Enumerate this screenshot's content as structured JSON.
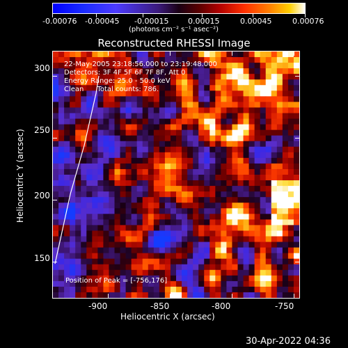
{
  "colorbar": {
    "tick_labels": [
      "-0.00076",
      "-0.00045",
      "-0.00015",
      "0.00015",
      "0.00045",
      "0.00076"
    ],
    "unit_label": "(photons cm⁻² s⁻¹ asec⁻²)",
    "vmin": -0.00076,
    "vmax": 0.00076
  },
  "plot": {
    "title": "Reconstructed RHESSI Image",
    "xlabel": "Heliocentric X (arcsec)",
    "ylabel": "Heliocentric Y (arcsec)",
    "x_ticks": [
      "-900",
      "-850",
      "-800",
      "-750"
    ],
    "y_ticks": [
      "150",
      "200",
      "250",
      "300"
    ],
    "xlim": [
      -945,
      -745
    ],
    "ylim": [
      120,
      320
    ],
    "annotations": {
      "time": "22-May-2005 23:18:56.000 to 23:19:48.000",
      "detectors": "Detectors: 3F 4F 5F 6F 7F 8F, Att 0",
      "energy": "Energy Range: 25.0 - 50.0 keV",
      "clean": "Clean      Total counts: 786.",
      "peak": "Position of Peak = [-756,176]"
    }
  },
  "footer": {
    "timestamp": "30-Apr-2022 04:36"
  },
  "colors": {
    "background": "#000000",
    "foreground": "#ffffff"
  }
}
